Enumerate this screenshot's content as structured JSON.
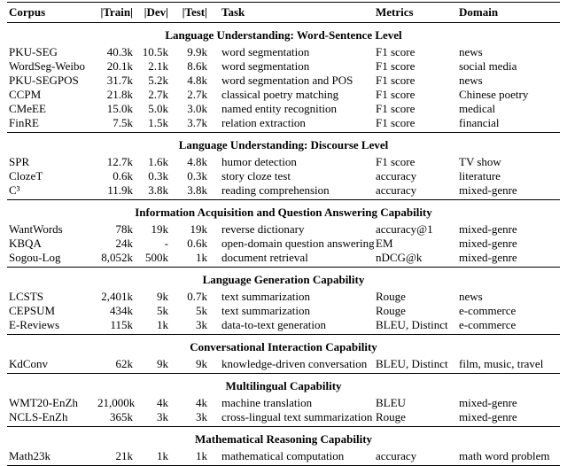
{
  "table": {
    "header": [
      "Corpus",
      "|Train|",
      "|Dev|",
      "|Test|",
      "Task",
      "Metrics",
      "Domain"
    ],
    "sections": [
      {
        "title": "Language Understanding: Word-Sentence Level",
        "rows": [
          [
            "PKU-SEG",
            "40.3k",
            "10.5k",
            "9.9k",
            "word segmentation",
            "F1 score",
            "news"
          ],
          [
            "WordSeg-Weibo",
            "20.1k",
            "2.1k",
            "8.6k",
            "word segmentation",
            "F1 score",
            "social media"
          ],
          [
            "PKU-SEGPOS",
            "31.7k",
            "5.2k",
            "4.8k",
            "word segmentation and POS",
            "F1 score",
            "news"
          ],
          [
            "CCPM",
            "21.8k",
            "2.7k",
            "2.7k",
            "classical poetry matching",
            "F1 score",
            "Chinese poetry"
          ],
          [
            "CMeEE",
            "15.0k",
            "5.0k",
            "3.0k",
            "named entity recognition",
            "F1 score",
            "medical"
          ],
          [
            "FinRE",
            "7.5k",
            "1.5k",
            "3.7k",
            "relation extraction",
            "F1 score",
            "financial"
          ]
        ]
      },
      {
        "title": "Language Understanding: Discourse Level",
        "rows": [
          [
            "SPR",
            "12.7k",
            "1.6k",
            "4.8k",
            "humor detection",
            "F1 score",
            "TV show"
          ],
          [
            "ClozeT",
            "0.6k",
            "0.3k",
            "0.3k",
            "story cloze test",
            "accuracy",
            "literature"
          ],
          [
            "C³",
            "11.9k",
            "3.8k",
            "3.8k",
            "reading comprehension",
            "accuracy",
            "mixed-genre"
          ]
        ]
      },
      {
        "title": "Information Acquisition and Question Answering Capability",
        "rows": [
          [
            "WantWords",
            "78k",
            "19k",
            "19k",
            "reverse dictionary",
            "accuracy@1",
            "mixed-genre"
          ],
          [
            "KBQA",
            "24k",
            "-",
            "0.6k",
            "open-domain question answering",
            "EM",
            "mixed-genre"
          ],
          [
            "Sogou-Log",
            "8,052k",
            "500k",
            "1k",
            "document retrieval",
            "nDCG@k",
            "mixed-genre"
          ]
        ]
      },
      {
        "title": "Language Generation Capability",
        "rows": [
          [
            "LCSTS",
            "2,401k",
            "9k",
            "0.7k",
            "text summarization",
            "Rouge",
            "news"
          ],
          [
            "CEPSUM",
            "434k",
            "5k",
            "5k",
            "text summarization",
            "Rouge",
            "e-commerce"
          ],
          [
            "E-Reviews",
            "115k",
            "1k",
            "3k",
            "data-to-text generation",
            "BLEU, Distinct",
            "e-commerce"
          ]
        ]
      },
      {
        "title": "Conversational Interaction Capability",
        "rows": [
          [
            "KdConv",
            "62k",
            "9k",
            "9k",
            "knowledge-driven conversation",
            "BLEU, Distinct",
            "film, music, travel"
          ]
        ]
      },
      {
        "title": "Multilingual Capability",
        "rows": [
          [
            "WMT20-EnZh",
            "21,000k",
            "4k",
            "4k",
            "machine translation",
            "BLEU",
            "mixed-genre"
          ],
          [
            "NCLS-EnZh",
            "365k",
            "3k",
            "3k",
            "cross-lingual text summarization",
            "Rouge",
            "mixed-genre"
          ]
        ]
      },
      {
        "title": "Mathematical Reasoning Capability",
        "rows": [
          [
            "Math23k",
            "21k",
            "1k",
            "1k",
            "mathematical computation",
            "accuracy",
            "math word problem"
          ]
        ]
      }
    ]
  }
}
